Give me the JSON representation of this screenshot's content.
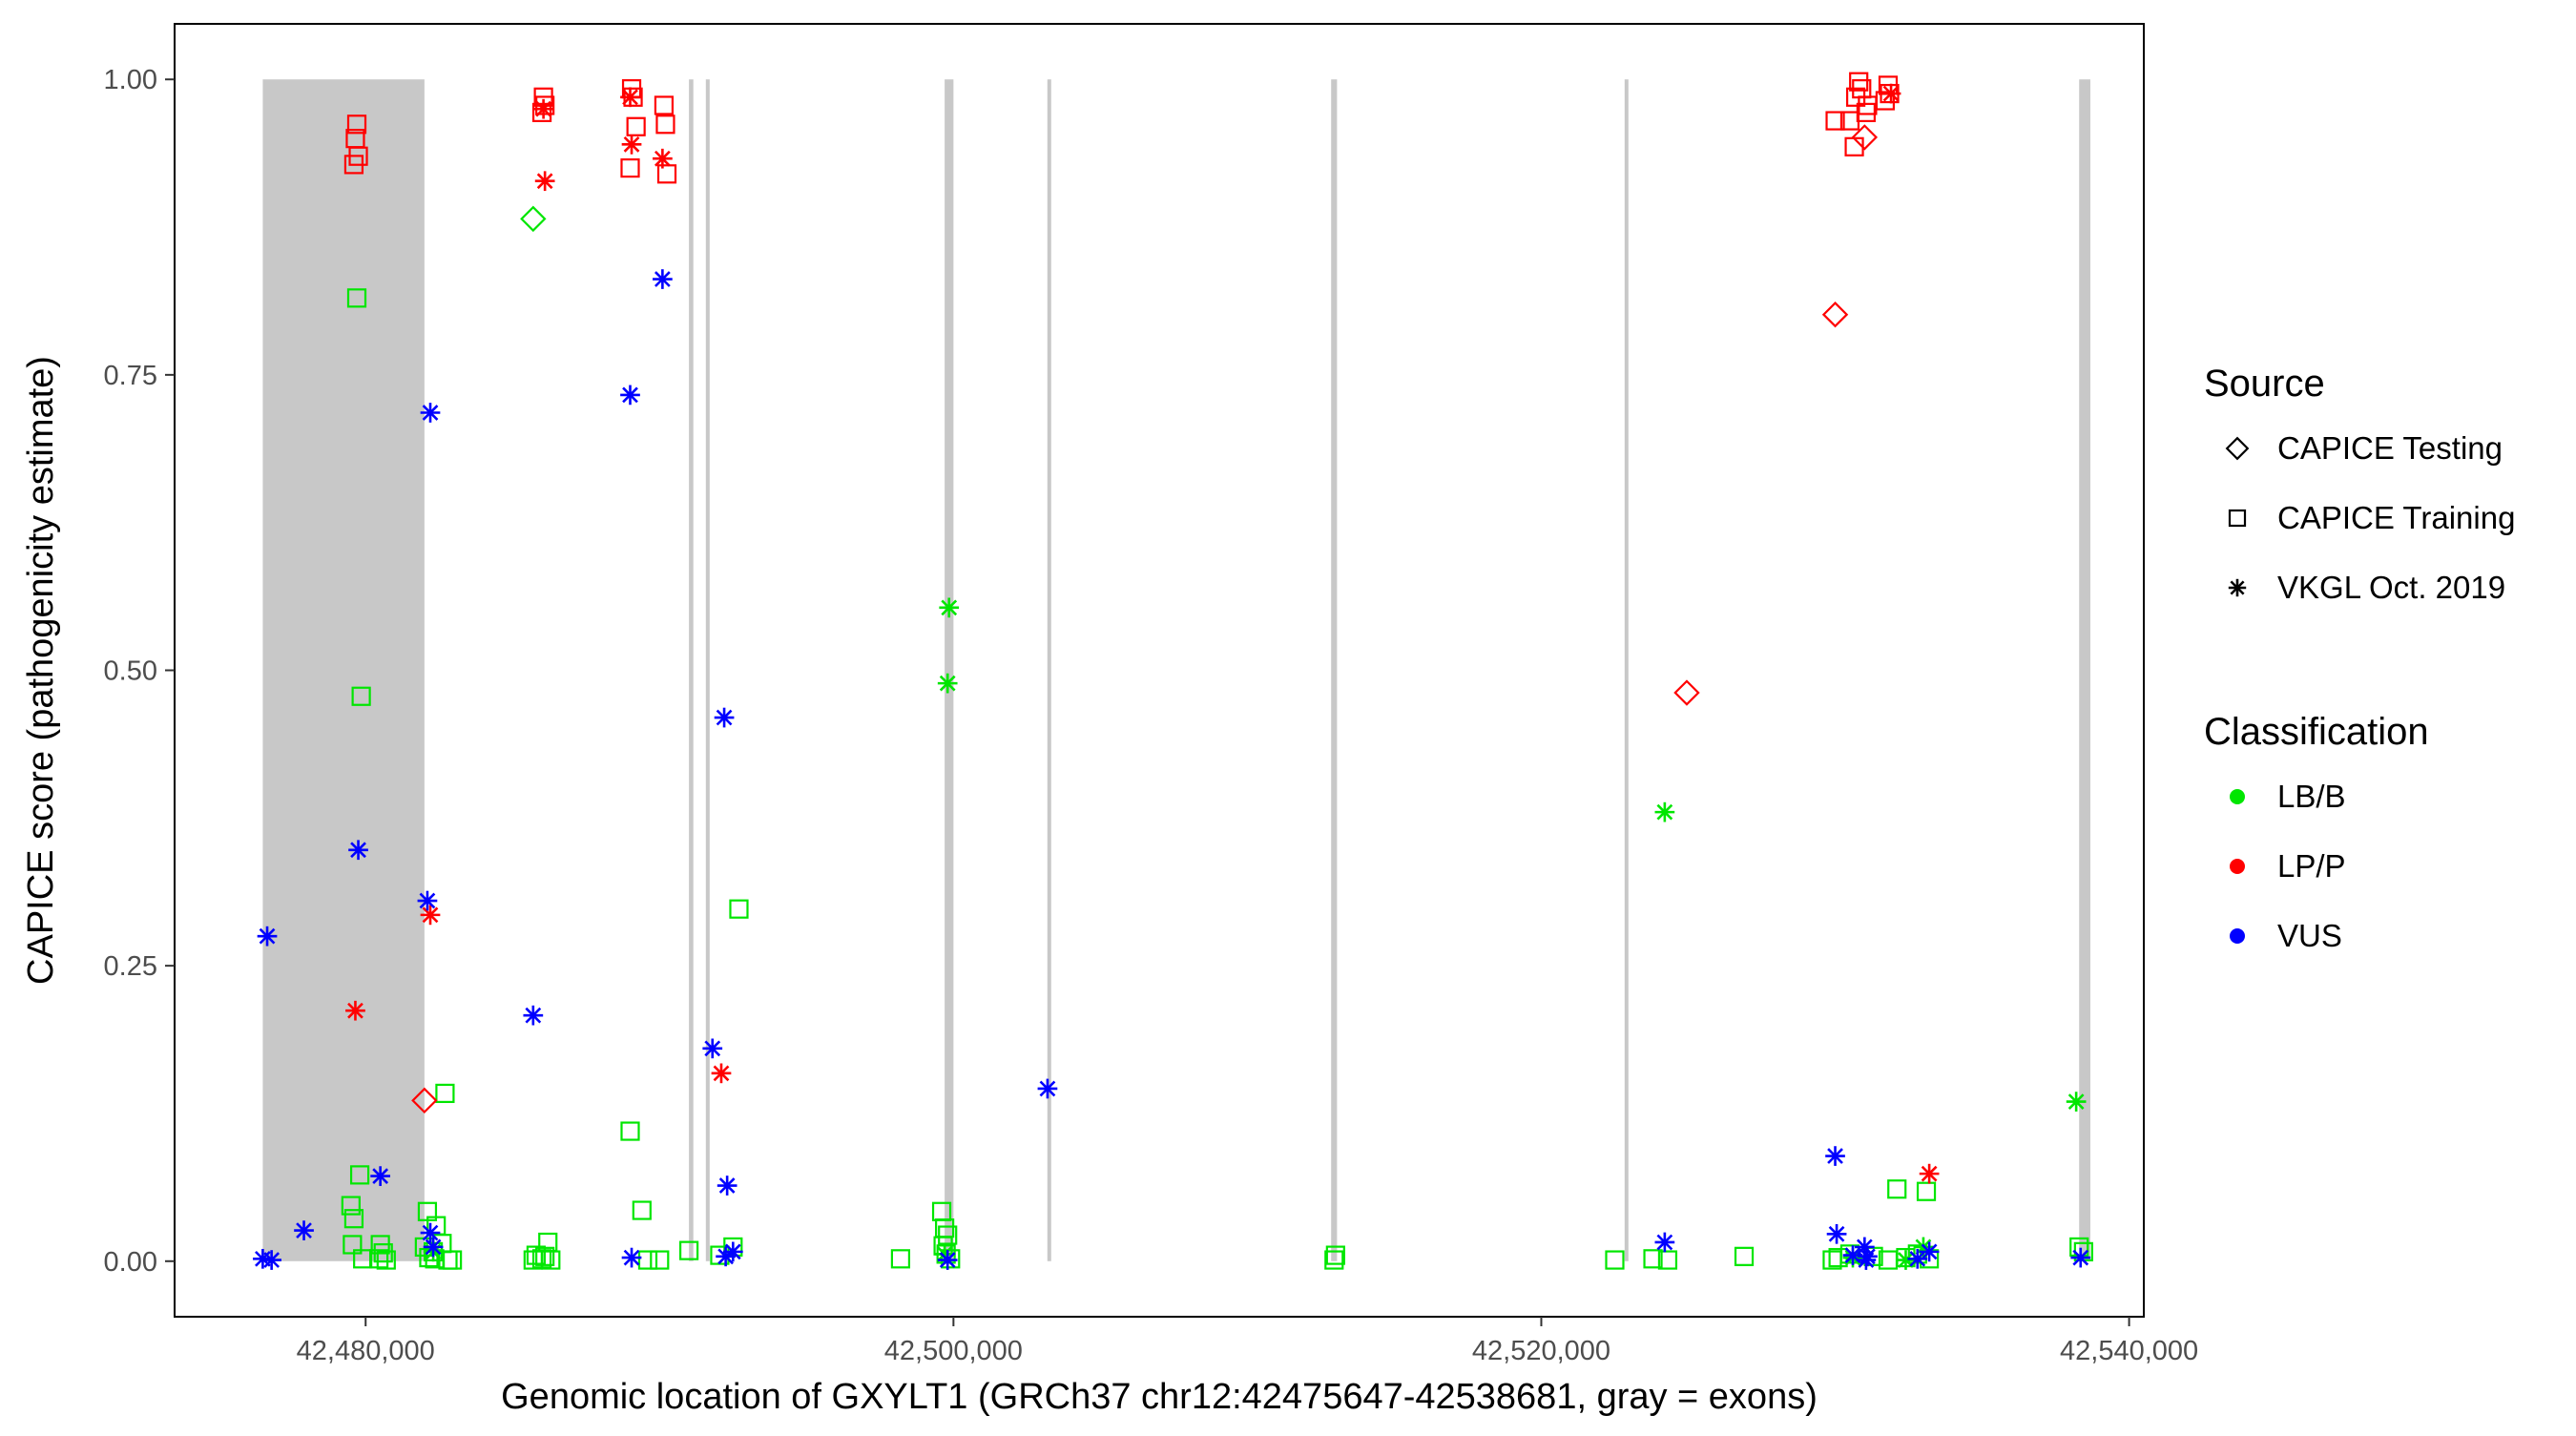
{
  "chart_data": {
    "type": "scatter",
    "title": "",
    "xlabel": "Genomic location of GXYLT1 (GRCh37 chr12:42475647-42538681, gray = exons)",
    "ylabel": "CAPICE score (pathogenicity estimate)",
    "xlim": [
      42473500,
      42540500
    ],
    "ylim": [
      -0.047,
      1.047
    ],
    "x_ticks": [
      42480000,
      42500000,
      42520000,
      42540000
    ],
    "x_tick_labels": [
      "42,480,000",
      "42,500,000",
      "42,520,000",
      "42,540,000"
    ],
    "y_ticks": [
      0,
      0.25,
      0.5,
      0.75,
      1.0
    ],
    "y_tick_labels": [
      "0.00",
      "0.25",
      "0.50",
      "0.75",
      "1.00"
    ],
    "grid": false,
    "exons": [
      [
        42476500,
        42482000
      ],
      [
        42491000,
        42491150
      ],
      [
        42491600,
        42491680
      ],
      [
        42499700,
        42500000
      ],
      [
        42503200,
        42503320
      ],
      [
        42512850,
        42513050
      ],
      [
        42522850,
        42522950
      ],
      [
        42538300,
        42538681
      ]
    ],
    "exon_color": "#c8c8c8",
    "classification_colors": {
      "LB/B": "#00e600",
      "LP/P": "#ff0000",
      "VUS": "#0000ff"
    },
    "legend": {
      "position": "right",
      "source_title": "Source",
      "source_items": [
        {
          "label": "CAPICE Testing",
          "shape": "diamond"
        },
        {
          "label": "CAPICE Training",
          "shape": "square"
        },
        {
          "label": "VKGL Oct. 2019",
          "shape": "asterisk"
        }
      ],
      "class_title": "Classification",
      "class_items": [
        {
          "label": "LB/B",
          "color": "#00e600"
        },
        {
          "label": "LP/P",
          "color": "#ff0000"
        },
        {
          "label": "VUS",
          "color": "#0000ff"
        }
      ]
    },
    "series": [
      {
        "source": "CAPICE Training",
        "classification": "LP/P",
        "points": [
          [
            42479700,
            0.962
          ],
          [
            42479650,
            0.95
          ],
          [
            42479750,
            0.935
          ],
          [
            42479600,
            0.928
          ],
          [
            42486050,
            0.985
          ],
          [
            42486100,
            0.978
          ],
          [
            42486000,
            0.972
          ],
          [
            42489050,
            0.992
          ],
          [
            42489100,
            0.985
          ],
          [
            42489200,
            0.96
          ],
          [
            42489000,
            0.925
          ],
          [
            42490150,
            0.978
          ],
          [
            42490200,
            0.962
          ],
          [
            42490250,
            0.92
          ],
          [
            42530800,
            0.998
          ],
          [
            42530900,
            0.992
          ],
          [
            42530700,
            0.985
          ],
          [
            42531100,
            0.978
          ],
          [
            42530500,
            0.965
          ],
          [
            42530000,
            0.965
          ],
          [
            42531050,
            0.972
          ],
          [
            42531800,
            0.995
          ],
          [
            42531850,
            0.988
          ],
          [
            42531700,
            0.982
          ],
          [
            42530650,
            0.943
          ]
        ]
      },
      {
        "source": "CAPICE Training",
        "classification": "LB/B",
        "points": [
          [
            42479700,
            0.815
          ],
          [
            42479850,
            0.478
          ],
          [
            42479800,
            0.073
          ],
          [
            42479500,
            0.047
          ],
          [
            42479600,
            0.036
          ],
          [
            42479550,
            0.014
          ],
          [
            42479900,
            0.002
          ],
          [
            42480500,
            0.014
          ],
          [
            42480600,
            0.007
          ],
          [
            42480450,
            0.002
          ],
          [
            42480700,
            0.001
          ],
          [
            42482100,
            0.042
          ],
          [
            42482400,
            0.03
          ],
          [
            42482000,
            0.012
          ],
          [
            42482300,
            0.008
          ],
          [
            42482700,
            0.142
          ],
          [
            42482600,
            0.015
          ],
          [
            42482150,
            0.003
          ],
          [
            42482350,
            0.002
          ],
          [
            42482800,
            0.001
          ],
          [
            42482950,
            0.001
          ],
          [
            42485800,
            0.005
          ],
          [
            42486100,
            0.004
          ],
          [
            42485700,
            0.001
          ],
          [
            42486000,
            0.002
          ],
          [
            42486200,
            0.016
          ],
          [
            42486300,
            0.001
          ],
          [
            42489000,
            0.11
          ],
          [
            42489400,
            0.043
          ],
          [
            42489600,
            0.001
          ],
          [
            42490000,
            0.001
          ],
          [
            42491000,
            0.009
          ],
          [
            42492700,
            0.298
          ],
          [
            42492500,
            0.012
          ],
          [
            42492050,
            0.005
          ],
          [
            42498200,
            0.002
          ],
          [
            42499600,
            0.042
          ],
          [
            42499700,
            0.028
          ],
          [
            42499800,
            0.022
          ],
          [
            42499650,
            0.013
          ],
          [
            42499750,
            0.006
          ],
          [
            42499900,
            0.002
          ],
          [
            42513000,
            0.005
          ],
          [
            42512950,
            0.001
          ],
          [
            42522500,
            0.001
          ],
          [
            42523800,
            0.002
          ],
          [
            42524300,
            0.001
          ],
          [
            42526900,
            0.004
          ],
          [
            42529900,
            0.001
          ],
          [
            42530100,
            0.003
          ],
          [
            42530500,
            0.006
          ],
          [
            42531300,
            0.004
          ],
          [
            42531800,
            0.001
          ],
          [
            42532100,
            0.061
          ],
          [
            42533100,
            0.059
          ],
          [
            42532800,
            0.006
          ],
          [
            42532400,
            0.003
          ],
          [
            42533200,
            0.002
          ],
          [
            42538300,
            0.012
          ],
          [
            42538450,
            0.008
          ]
        ]
      },
      {
        "source": "CAPICE Testing",
        "classification": "LB/B",
        "points": [
          [
            42485700,
            0.882
          ]
        ]
      },
      {
        "source": "CAPICE Testing",
        "classification": "LP/P",
        "points": [
          [
            42482000,
            0.136
          ],
          [
            42530000,
            0.801
          ],
          [
            42524950,
            0.481
          ],
          [
            42531000,
            0.951
          ]
        ]
      },
      {
        "source": "VKGL Oct. 2019",
        "classification": "LP/P",
        "points": [
          [
            42479650,
            0.212
          ],
          [
            42482200,
            0.293
          ],
          [
            42486050,
            0.975
          ],
          [
            42486100,
            0.914
          ],
          [
            42489000,
            0.985
          ],
          [
            42489050,
            0.945
          ],
          [
            42490100,
            0.933
          ],
          [
            42492100,
            0.159
          ],
          [
            42531900,
            0.988
          ],
          [
            42533200,
            0.074
          ]
        ]
      },
      {
        "source": "VKGL Oct. 2019",
        "classification": "LB/B",
        "points": [
          [
            42499850,
            0.553
          ],
          [
            42499800,
            0.489
          ],
          [
            42524200,
            0.38
          ],
          [
            42538200,
            0.135
          ],
          [
            42530600,
            0.003
          ],
          [
            42532400,
            0.001
          ],
          [
            42533000,
            0.012
          ],
          [
            42499700,
            0.006
          ],
          [
            42482300,
            0.008
          ]
        ]
      },
      {
        "source": "VKGL Oct. 2019",
        "classification": "VUS",
        "points": [
          [
            42476650,
            0.275
          ],
          [
            42476500,
            0.002
          ],
          [
            42476800,
            0.001
          ],
          [
            42477900,
            0.026
          ],
          [
            42479750,
            0.348
          ],
          [
            42480500,
            0.072
          ],
          [
            42482200,
            0.718
          ],
          [
            42482100,
            0.305
          ],
          [
            42482200,
            0.024
          ],
          [
            42482300,
            0.012
          ],
          [
            42485700,
            0.208
          ],
          [
            42489000,
            0.733
          ],
          [
            42490100,
            0.831
          ],
          [
            42489050,
            0.003
          ],
          [
            42491800,
            0.18
          ],
          [
            42492200,
            0.46
          ],
          [
            42492300,
            0.064
          ],
          [
            42492250,
            0.004
          ],
          [
            42492500,
            0.008
          ],
          [
            42499800,
            0.001
          ],
          [
            42503200,
            0.146
          ],
          [
            42524200,
            0.016
          ],
          [
            42530000,
            0.089
          ],
          [
            42530050,
            0.023
          ],
          [
            42530600,
            0.005
          ],
          [
            42531000,
            0.012
          ],
          [
            42531100,
            0.004
          ],
          [
            42531050,
            0.001
          ],
          [
            42532800,
            0.002
          ],
          [
            42533200,
            0.008
          ],
          [
            42538350,
            0.003
          ]
        ]
      }
    ]
  }
}
